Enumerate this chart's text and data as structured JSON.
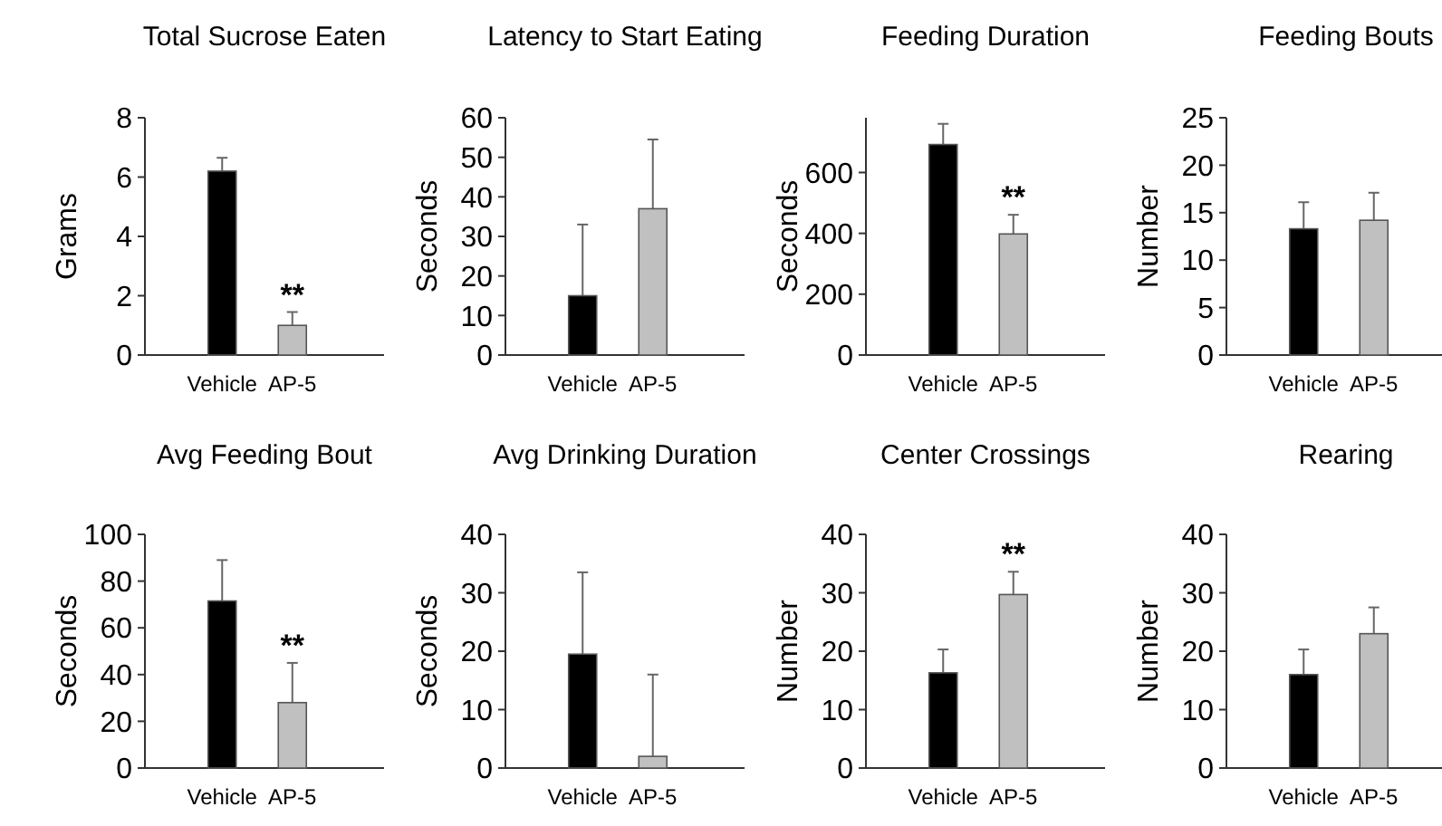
{
  "chart_data": [
    {
      "type": "bar",
      "title": "Total Sucrose Eaten",
      "ylabel": "Grams",
      "categories": [
        "Vehicle",
        "AP-5"
      ],
      "values": [
        6.2,
        1.0
      ],
      "colors": [
        "#000000",
        "#c0c0c0"
      ],
      "errors": [
        [
          6.2,
          6.65
        ],
        [
          1.0,
          1.45
        ]
      ],
      "ylim": [
        0,
        8
      ],
      "yticks": [
        0,
        2,
        4,
        6,
        8
      ],
      "annotations": [
        {
          "text": "**",
          "x": "AP-5",
          "y": 1.0
        }
      ]
    },
    {
      "type": "bar",
      "title": "Latency to Start Eating",
      "ylabel": "Seconds",
      "categories": [
        "Vehicle",
        "AP-5"
      ],
      "values": [
        15,
        37
      ],
      "colors": [
        "#000000",
        "#c0c0c0"
      ],
      "errors": [
        [
          15,
          33
        ],
        [
          37,
          54.5
        ]
      ],
      "ylim": [
        0,
        60
      ],
      "yticks": [
        0,
        10,
        20,
        30,
        40,
        50,
        60
      ]
    },
    {
      "type": "bar",
      "title": "Feeding Duration",
      "ylabel": "Seconds",
      "categories": [
        "Vehicle",
        "AP-5"
      ],
      "values": [
        692,
        398
      ],
      "colors": [
        "#000000",
        "#c0c0c0"
      ],
      "errors": [
        [
          692,
          760
        ],
        [
          398,
          461
        ]
      ],
      "ylim": [
        0,
        780
      ],
      "yticks": [
        0,
        200,
        400,
        600
      ],
      "annotations": [
        {
          "text": "**",
          "x": "AP-5",
          "y": 398
        }
      ]
    },
    {
      "type": "bar",
      "title": "Feeding Bouts",
      "ylabel": "Number",
      "categories": [
        "Vehicle",
        "AP-5"
      ],
      "values": [
        13.3,
        14.2
      ],
      "colors": [
        "#000000",
        "#c0c0c0"
      ],
      "errors": [
        [
          13.3,
          16.1
        ],
        [
          14.2,
          17.1
        ]
      ],
      "ylim": [
        0,
        25
      ],
      "yticks": [
        0,
        5,
        10,
        15,
        20,
        25
      ]
    },
    {
      "type": "bar",
      "title": "Avg Feeding Bout",
      "ylabel": "Seconds",
      "categories": [
        "Vehicle",
        "AP-5"
      ],
      "values": [
        71.5,
        28
      ],
      "colors": [
        "#000000",
        "#c0c0c0"
      ],
      "errors": [
        [
          71.5,
          89
        ],
        [
          28,
          45
        ]
      ],
      "ylim": [
        0,
        100
      ],
      "yticks": [
        0,
        20,
        40,
        60,
        80,
        100
      ],
      "annotations": [
        {
          "text": "**",
          "x": "AP-5",
          "y": 28
        }
      ]
    },
    {
      "type": "bar",
      "title": "Avg Drinking Duration",
      "ylabel": "Seconds",
      "categories": [
        "Vehicle",
        "AP-5"
      ],
      "values": [
        19.5,
        2
      ],
      "colors": [
        "#000000",
        "#c0c0c0"
      ],
      "errors": [
        [
          19.5,
          33.5
        ],
        [
          2,
          16
        ]
      ],
      "ylim": [
        0,
        40
      ],
      "yticks": [
        0,
        10,
        20,
        30,
        40
      ]
    },
    {
      "type": "bar",
      "title": "Center Crossings",
      "ylabel": "Number",
      "categories": [
        "Vehicle",
        "AP-5"
      ],
      "values": [
        16.3,
        29.7
      ],
      "colors": [
        "#000000",
        "#c0c0c0"
      ],
      "errors": [
        [
          16.3,
          20.3
        ],
        [
          29.7,
          33.6
        ]
      ],
      "ylim": [
        0,
        40
      ],
      "yticks": [
        0,
        10,
        20,
        30,
        40
      ],
      "annotations": [
        {
          "text": "**",
          "x": "AP-5",
          "y": 29.7
        }
      ]
    },
    {
      "type": "bar",
      "title": "Rearing",
      "ylabel": "Number",
      "categories": [
        "Vehicle",
        "AP-5"
      ],
      "values": [
        16,
        23
      ],
      "colors": [
        "#000000",
        "#c0c0c0"
      ],
      "errors": [
        [
          16,
          20.3
        ],
        [
          23,
          27.5
        ]
      ],
      "ylim": [
        0,
        40
      ],
      "yticks": [
        0,
        10,
        20,
        30,
        40
      ]
    }
  ]
}
